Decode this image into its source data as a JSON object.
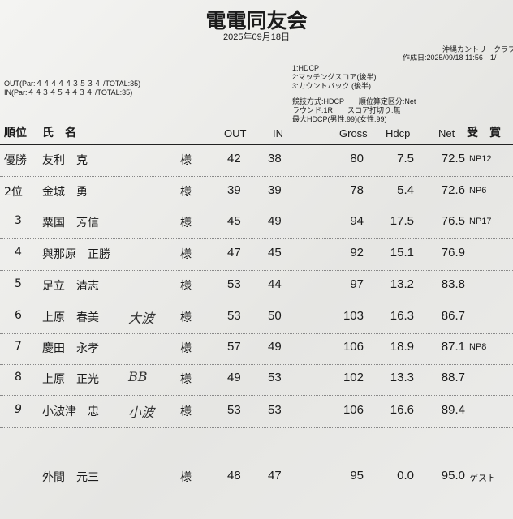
{
  "title": "電電同友会",
  "date": "2025年09月18日",
  "club": "沖縄カントリークラブ",
  "created": "作成日:2025/09/18 11:56　1/",
  "par_out": "OUT(Par:４４４４４３５３４ /TOTAL:35)",
  "par_in": "IN(Par:４４３４５４４３４ /TOTAL:35)",
  "tiebreak": [
    "1:HDCP",
    "2:マッチングスコア(後半)",
    "3:カウントバック (後半)"
  ],
  "rules": [
    "競技方式:HDCP　　順位算定区分:Net",
    "ラウンド:1R　　スコア打切り:無",
    "最大HDCP(男性:99)(女性:99)"
  ],
  "headers": {
    "rank": "順位",
    "name": "氏　名",
    "out": "OUT",
    "in": "IN",
    "gross": "Gross",
    "hdcp": "Hdcp",
    "net": "Net",
    "award": "受　賞"
  },
  "rows": [
    {
      "rank": "優勝",
      "name": "友利　克",
      "hon": "様",
      "out": "42",
      "in": "38",
      "gross": "80",
      "hdcp": "7.5",
      "net": "72.5",
      "award": "NP12",
      "note": ""
    },
    {
      "rank": "2位",
      "name": "金城　勇",
      "hon": "様",
      "out": "39",
      "in": "39",
      "gross": "78",
      "hdcp": "5.4",
      "net": "72.6",
      "award": "NP6",
      "note": ""
    },
    {
      "rank": "3",
      "name": "粟国　芳信",
      "hon": "様",
      "out": "45",
      "in": "49",
      "gross": "94",
      "hdcp": "17.5",
      "net": "76.5",
      "award": "NP17",
      "note": ""
    },
    {
      "rank": "4",
      "name": "與那原　正勝",
      "hon": "様",
      "out": "47",
      "in": "45",
      "gross": "92",
      "hdcp": "15.1",
      "net": "76.9",
      "award": "",
      "note": ""
    },
    {
      "rank": "5",
      "name": "足立　清志",
      "hon": "様",
      "out": "53",
      "in": "44",
      "gross": "97",
      "hdcp": "13.2",
      "net": "83.8",
      "award": "",
      "note": ""
    },
    {
      "rank": "6",
      "name": "上原　春美",
      "hon": "様",
      "out": "53",
      "in": "50",
      "gross": "103",
      "hdcp": "16.3",
      "net": "86.7",
      "award": "",
      "note": "大波"
    },
    {
      "rank": "7",
      "name": "慶田　永孝",
      "hon": "様",
      "out": "57",
      "in": "49",
      "gross": "106",
      "hdcp": "18.9",
      "net": "87.1",
      "award": "NP8",
      "note": ""
    },
    {
      "rank": "8",
      "name": "上原　正光",
      "hon": "様",
      "out": "49",
      "in": "53",
      "gross": "102",
      "hdcp": "13.3",
      "net": "88.7",
      "award": "",
      "note": "BB"
    },
    {
      "rank": "9",
      "name": "小波津　忠",
      "hon": "様",
      "out": "53",
      "in": "53",
      "gross": "106",
      "hdcp": "16.6",
      "net": "89.4",
      "award": "",
      "note": "小波"
    },
    {
      "rank": "",
      "name": "外間　元三",
      "hon": "様",
      "out": "48",
      "in": "47",
      "gross": "95",
      "hdcp": "0.0",
      "net": "95.0",
      "award": "ゲスト",
      "note": ""
    }
  ]
}
